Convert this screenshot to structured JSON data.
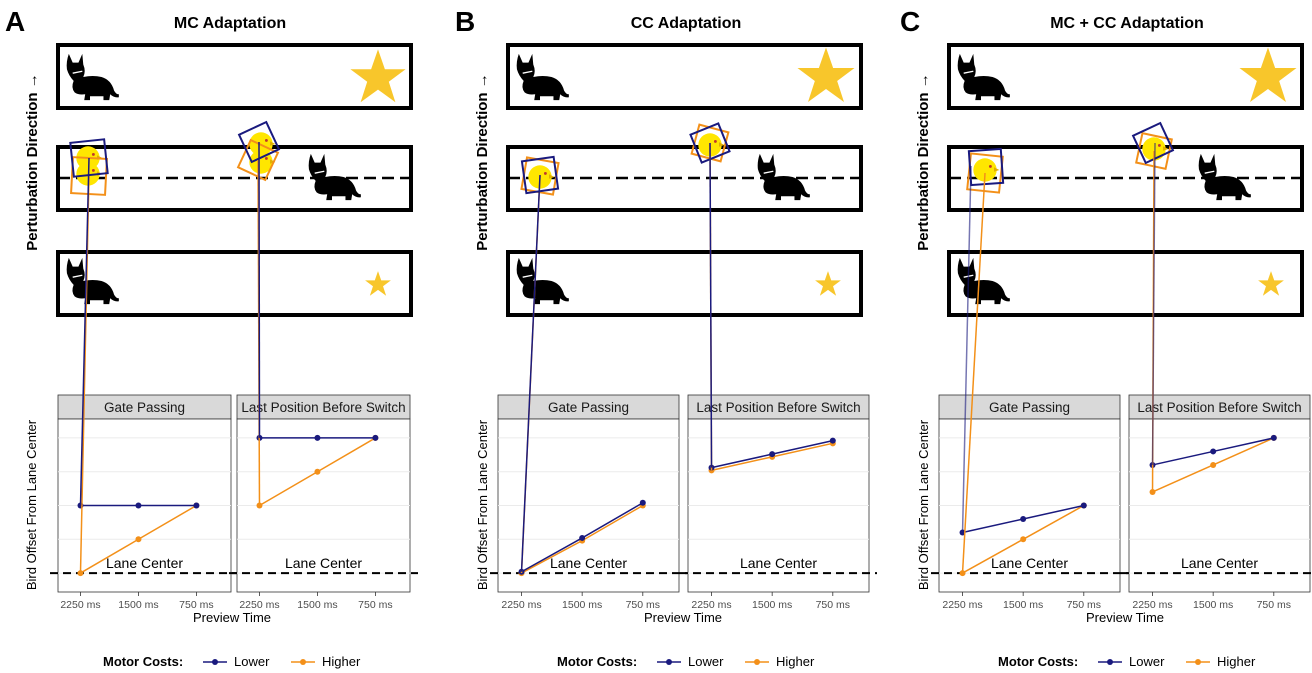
{
  "colors": {
    "lower": "#1a1a7e",
    "higher": "#f39019",
    "star": "#f8c62b",
    "bird": "#ffe600",
    "strip_bg": "#d9d9d9",
    "grid": "#ebebeb",
    "lane_line": "#000000"
  },
  "y_axis_label": "Perturbation Direction →",
  "bird_y_label": "Bird Offset From Lane Center",
  "x_axis_title": "Preview Time",
  "lane_center_label": "Lane Center",
  "legend": {
    "title": "Motor Costs:",
    "items": [
      "Lower",
      "Higher"
    ]
  },
  "icons": [
    "cat-icon",
    "star-icon",
    "bird-icon"
  ],
  "chart_data": [
    {
      "type": "line",
      "label": "A",
      "title": "MC Adaptation",
      "categories": [
        "2250 ms",
        "1500 ms",
        "750 ms"
      ],
      "facets": [
        {
          "name": "Gate Passing",
          "series": [
            {
              "name": "Lower",
              "values": [
                2.5,
                2.5,
                2.5
              ]
            },
            {
              "name": "Higher",
              "values": [
                0,
                1.25,
                2.5
              ]
            }
          ]
        },
        {
          "name": "Last Position Before Switch",
          "series": [
            {
              "name": "Lower",
              "values": [
                5,
                5,
                5
              ]
            },
            {
              "name": "Higher",
              "values": [
                2.5,
                3.75,
                5
              ]
            }
          ]
        }
      ],
      "xlabel": "Preview Time",
      "ylabel": "Bird Offset From Lane Center",
      "ylim": [
        -0.7,
        5.7
      ]
    },
    {
      "type": "line",
      "label": "B",
      "title": "CC Adaptation",
      "categories": [
        "2250 ms",
        "1500 ms",
        "750 ms"
      ],
      "facets": [
        {
          "name": "Gate Passing",
          "series": [
            {
              "name": "Lower",
              "values": [
                0.05,
                1.3,
                2.6
              ]
            },
            {
              "name": "Higher",
              "values": [
                0,
                1.2,
                2.5
              ]
            }
          ]
        },
        {
          "name": "Last Position Before Switch",
          "series": [
            {
              "name": "Lower",
              "values": [
                3.9,
                4.4,
                4.9
              ]
            },
            {
              "name": "Higher",
              "values": [
                3.8,
                4.3,
                4.8
              ]
            }
          ]
        }
      ],
      "xlabel": "Preview Time",
      "ylabel": "Bird Offset From Lane Center",
      "ylim": [
        -0.7,
        5.7
      ]
    },
    {
      "type": "line",
      "label": "C",
      "title": "MC + CC Adaptation",
      "categories": [
        "2250 ms",
        "1500 ms",
        "750 ms"
      ],
      "facets": [
        {
          "name": "Gate Passing",
          "series": [
            {
              "name": "Lower",
              "values": [
                1.5,
                2.0,
                2.5
              ]
            },
            {
              "name": "Higher",
              "values": [
                0,
                1.25,
                2.5
              ]
            }
          ]
        },
        {
          "name": "Last Position Before Switch",
          "series": [
            {
              "name": "Lower",
              "values": [
                4.0,
                4.5,
                5.0
              ]
            },
            {
              "name": "Higher",
              "values": [
                3.0,
                4.0,
                5.0
              ]
            }
          ]
        }
      ],
      "xlabel": "Preview Time",
      "ylabel": "Bird Offset From Lane Center",
      "ylim": [
        -0.7,
        5.7
      ]
    }
  ]
}
